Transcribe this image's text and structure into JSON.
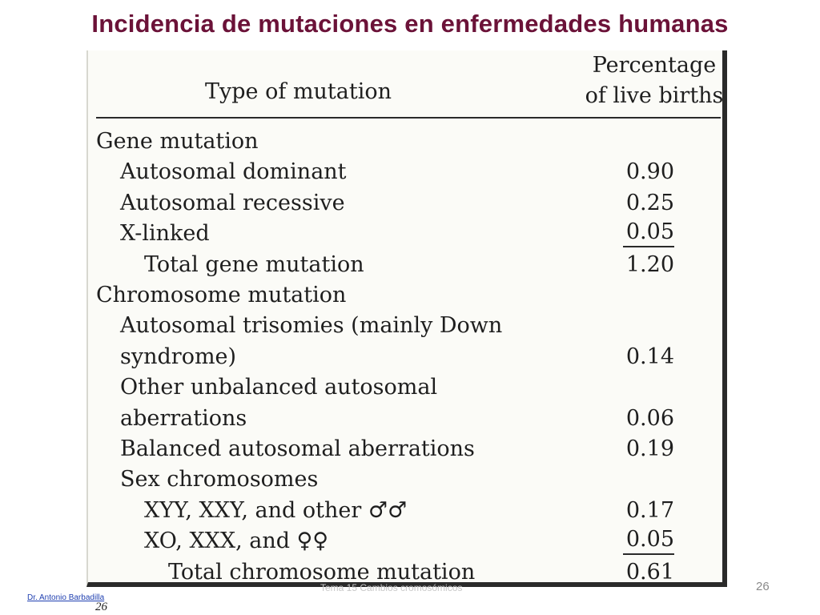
{
  "slide": {
    "title": "Incidencia de mutaciones en enfermedades humanas"
  },
  "table": {
    "header_type": "Type of mutation",
    "header_pct_line1": "Percentage",
    "header_pct_line2": "of live births",
    "rows": [
      {
        "label": "Gene mutation",
        "value": "",
        "indent": 0,
        "underline": false
      },
      {
        "label": "Autosomal dominant",
        "value": "0.90",
        "indent": 1,
        "underline": false
      },
      {
        "label": "Autosomal recessive",
        "value": "0.25",
        "indent": 1,
        "underline": false
      },
      {
        "label": "X-linked",
        "value": "0.05",
        "indent": 1,
        "underline": true
      },
      {
        "label": "Total gene mutation",
        "value": "1.20",
        "indent": 2,
        "underline": false
      },
      {
        "label": "Chromosome mutation",
        "value": "",
        "indent": 0,
        "underline": false
      },
      {
        "label": "Autosomal trisomies (mainly Down",
        "value": "",
        "indent": 1,
        "underline": false
      },
      {
        "label": "syndrome)",
        "value": "0.14",
        "indent": 1,
        "underline": false
      },
      {
        "label": "Other unbalanced autosomal",
        "value": "",
        "indent": 1,
        "underline": false
      },
      {
        "label": "aberrations",
        "value": "0.06",
        "indent": 1,
        "underline": false
      },
      {
        "label": "Balanced autosomal aberrations",
        "value": "0.19",
        "indent": 1,
        "underline": false
      },
      {
        "label": "Sex chromosomes",
        "value": "",
        "indent": 1,
        "underline": false
      },
      {
        "label": "XYY, XXY, and other ♂♂",
        "value": "0.17",
        "indent": 2,
        "underline": false
      },
      {
        "label": "XO, XXX, and ♀♀",
        "value": "0.05",
        "indent": 2,
        "underline": true
      },
      {
        "label": "Total chromosome mutation",
        "value": "0.61",
        "indent": 3,
        "underline": false
      }
    ]
  },
  "footer": {
    "author": "Dr. Antonio Barbadilla",
    "page_italic": "26",
    "center_text": "Tema 15 Cambios cromosómicos",
    "page_number": "26"
  }
}
